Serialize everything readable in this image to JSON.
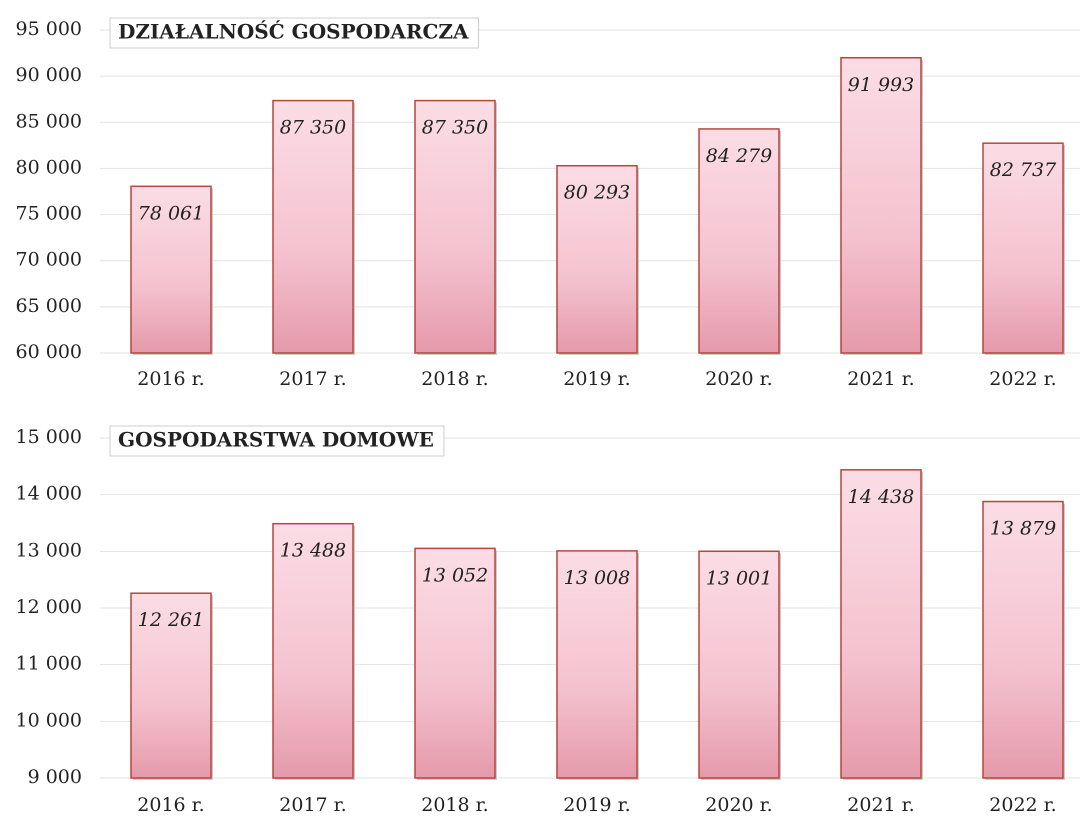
{
  "chart_data": [
    {
      "type": "bar",
      "title": "DZIAŁALNOŚĆ GOSPODARCZA",
      "categories": [
        "2016 r.",
        "2017 r.",
        "2018 r.",
        "2019 r.",
        "2020 r.",
        "2021 r.",
        "2022 r."
      ],
      "values": [
        78061,
        87350,
        87350,
        80293,
        84279,
        91993,
        82737
      ],
      "value_labels": [
        "78 061",
        "87 350",
        "87 350",
        "80 293",
        "84 279",
        "91 993",
        "82 737"
      ],
      "color": "#f4b8c6",
      "ylim": [
        60000,
        95000
      ],
      "yticks": [
        {
          "value": 60000,
          "label": "60 000"
        },
        {
          "value": 65000,
          "label": "65 000"
        },
        {
          "value": 70000,
          "label": "70 000"
        },
        {
          "value": 75000,
          "label": "75 000"
        },
        {
          "value": 80000,
          "label": "80 000"
        },
        {
          "value": 85000,
          "label": "85 000"
        },
        {
          "value": 90000,
          "label": "90 000"
        },
        {
          "value": 95000,
          "label": "95 000"
        }
      ],
      "grid": true
    },
    {
      "type": "bar",
      "title": "GOSPODARSTWA DOMOWE",
      "categories": [
        "2016 r.",
        "2017 r.",
        "2018 r.",
        "2019 r.",
        "2020 r.",
        "2021 r.",
        "2022 r."
      ],
      "values": [
        12261,
        13488,
        13052,
        13008,
        13001,
        14438,
        13879
      ],
      "value_labels": [
        "12 261",
        "13 488",
        "13 052",
        "13 008",
        "13 001",
        "14 438",
        "13 879"
      ],
      "color": "#f4b8c6",
      "ylim": [
        9000,
        15000
      ],
      "yticks": [
        {
          "value": 9000,
          "label": "9 000"
        },
        {
          "value": 10000,
          "label": "10 000"
        },
        {
          "value": 11000,
          "label": "11 000"
        },
        {
          "value": 12000,
          "label": "12 000"
        },
        {
          "value": 13000,
          "label": "13 000"
        },
        {
          "value": 14000,
          "label": "14 000"
        },
        {
          "value": 15000,
          "label": "15 000"
        }
      ],
      "grid": true
    }
  ]
}
